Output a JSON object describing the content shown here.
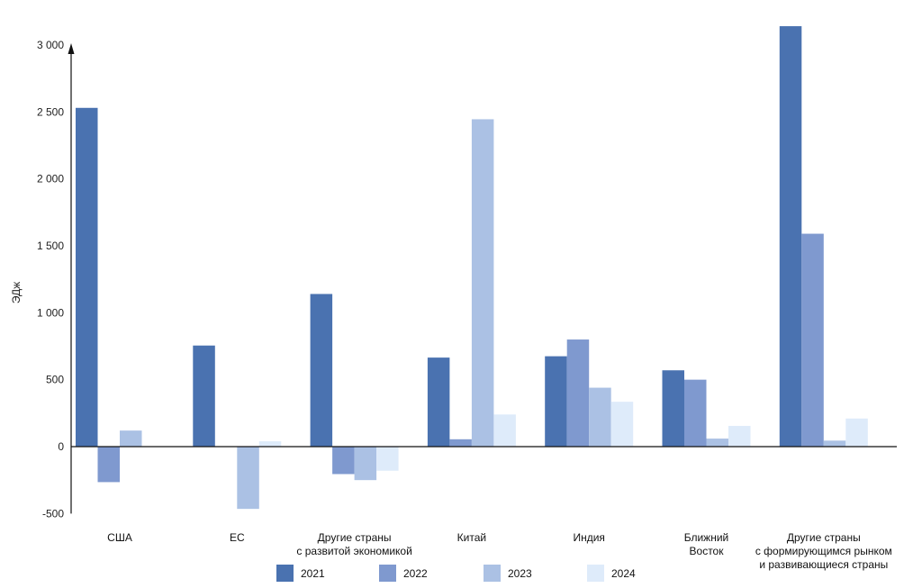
{
  "chart_data": {
    "type": "bar",
    "title": "",
    "ylabel": "ЭДж",
    "xlabel": "",
    "ylim": [
      -500,
      3000
    ],
    "yticks": [
      -500,
      0,
      500,
      1000,
      1500,
      2000,
      2500,
      3000
    ],
    "ytick_labels": [
      "-500",
      "0",
      "500",
      "1 000",
      "1 500",
      "2 000",
      "2 500",
      "3 000"
    ],
    "grid": false,
    "legend_position": "bottom",
    "categories": [
      [
        "США"
      ],
      [
        "ЕС"
      ],
      [
        "Другие страны",
        "с развитой экономикой"
      ],
      [
        "Китай"
      ],
      [
        "Индия"
      ],
      [
        "Ближний",
        "Восток"
      ],
      [
        "Другие страны",
        "с формирующимся рынком",
        "и развивающиеся страны"
      ]
    ],
    "series": [
      {
        "name": "2021",
        "color": "#4a72b0",
        "values": [
          2530,
          755,
          1140,
          665,
          675,
          570,
          3140
        ]
      },
      {
        "name": "2022",
        "color": "#7f99cf",
        "values": [
          -265,
          0,
          -205,
          55,
          800,
          500,
          1590
        ]
      },
      {
        "name": "2023",
        "color": "#abc1e4",
        "values": [
          120,
          -465,
          -250,
          2445,
          440,
          60,
          45
        ]
      },
      {
        "name": "2024",
        "color": "#deebfa",
        "values": [
          0,
          40,
          -180,
          240,
          335,
          155,
          210
        ]
      }
    ]
  }
}
